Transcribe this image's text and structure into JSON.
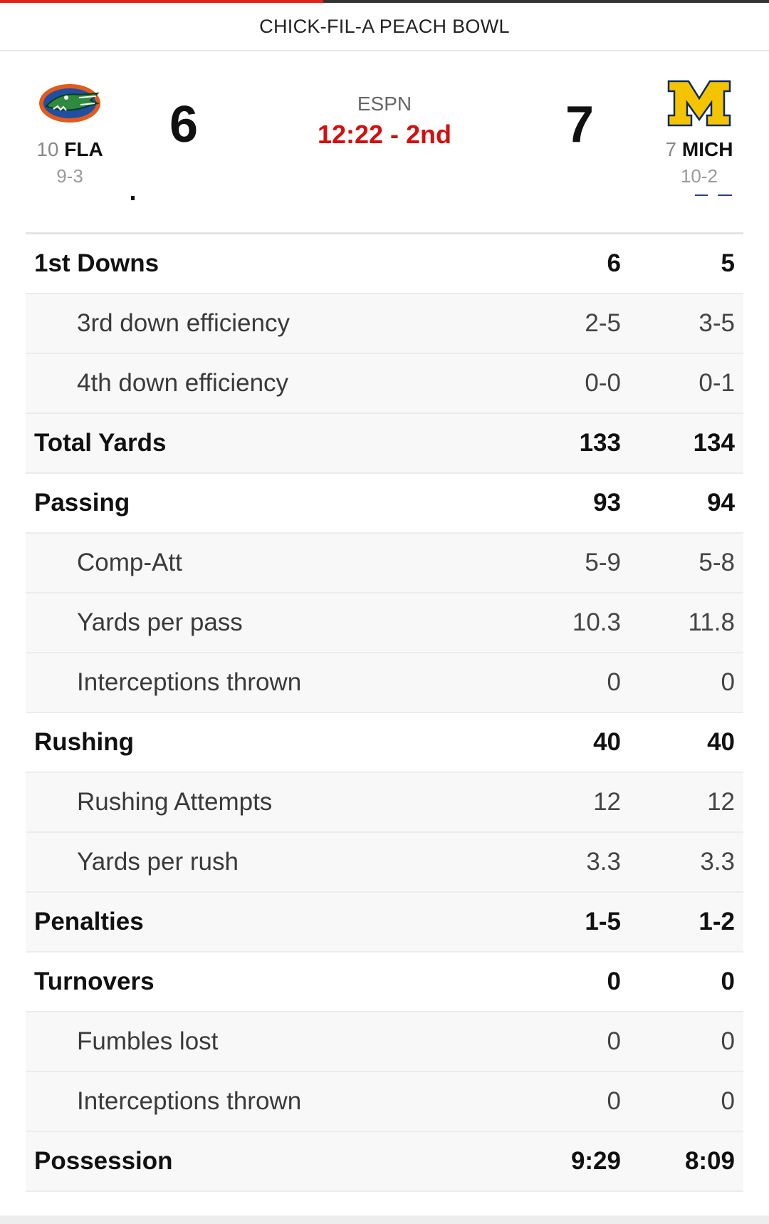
{
  "header": {
    "title": "CHICK-FIL-A PEACH BOWL"
  },
  "game_progress": 0.42,
  "colors": {
    "accent_red": "#d40f0f",
    "progress_red": "#e2211c"
  },
  "broadcast": {
    "network": "ESPN",
    "clock": "12:22 - 2nd"
  },
  "teams": {
    "left": {
      "rank": "10",
      "abbr": "FLA",
      "record": "9-3",
      "score": "6",
      "logo": "gator-logo-icon"
    },
    "right": {
      "rank": "7",
      "abbr": "MICH",
      "record": "10-2",
      "score": "7",
      "logo": "block-m-logo-icon"
    }
  },
  "stats": [
    {
      "label": "1st Downs",
      "fla": "6",
      "mich": "5",
      "kind": "main"
    },
    {
      "label": "3rd down efficiency",
      "fla": "2-5",
      "mich": "3-5",
      "kind": "sub"
    },
    {
      "label": "4th down efficiency",
      "fla": "0-0",
      "mich": "0-1",
      "kind": "sub"
    },
    {
      "label": "Total Yards",
      "fla": "133",
      "mich": "134",
      "kind": "alt"
    },
    {
      "label": "Passing",
      "fla": "93",
      "mich": "94",
      "kind": "main"
    },
    {
      "label": "Comp-Att",
      "fla": "5-9",
      "mich": "5-8",
      "kind": "sub"
    },
    {
      "label": "Yards per pass",
      "fla": "10.3",
      "mich": "11.8",
      "kind": "sub"
    },
    {
      "label": "Interceptions thrown",
      "fla": "0",
      "mich": "0",
      "kind": "sub"
    },
    {
      "label": "Rushing",
      "fla": "40",
      "mich": "40",
      "kind": "main"
    },
    {
      "label": "Rushing Attempts",
      "fla": "12",
      "mich": "12",
      "kind": "sub"
    },
    {
      "label": "Yards per rush",
      "fla": "3.3",
      "mich": "3.3",
      "kind": "sub"
    },
    {
      "label": "Penalties",
      "fla": "1-5",
      "mich": "1-2",
      "kind": "alt"
    },
    {
      "label": "Turnovers",
      "fla": "0",
      "mich": "0",
      "kind": "main"
    },
    {
      "label": "Fumbles lost",
      "fla": "0",
      "mich": "0",
      "kind": "sub"
    },
    {
      "label": "Interceptions thrown",
      "fla": "0",
      "mich": "0",
      "kind": "sub"
    },
    {
      "label": "Possession",
      "fla": "9:29",
      "mich": "8:09",
      "kind": "alt"
    }
  ]
}
